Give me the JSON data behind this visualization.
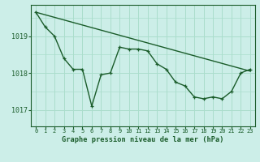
{
  "background_color": "#cceee8",
  "grid_color": "#aaddcc",
  "line_color": "#1a5c2a",
  "title": "Graphe pression niveau de la mer (hPa)",
  "yticks": [
    1017,
    1018,
    1019
  ],
  "ylim": [
    1016.55,
    1019.85
  ],
  "xlim": [
    -0.5,
    23.5
  ],
  "series1_x": [
    0,
    1,
    2,
    3,
    4,
    5,
    6,
    7,
    8,
    9,
    10,
    11,
    12,
    13,
    14,
    15,
    16,
    17,
    18,
    19,
    20,
    21,
    22,
    23
  ],
  "series1_y": [
    1019.65,
    1019.25,
    1019.0,
    1018.4,
    1018.1,
    1018.1,
    1017.1,
    1017.95,
    1018.0,
    1018.7,
    1018.65,
    1018.65,
    1018.6,
    1018.25,
    1018.1,
    1017.75,
    1017.65,
    1017.35,
    1017.3,
    1017.35,
    1017.3,
    1017.5,
    1018.0,
    1018.1
  ],
  "trend_x": [
    0,
    23
  ],
  "trend_y": [
    1019.65,
    1018.05
  ]
}
